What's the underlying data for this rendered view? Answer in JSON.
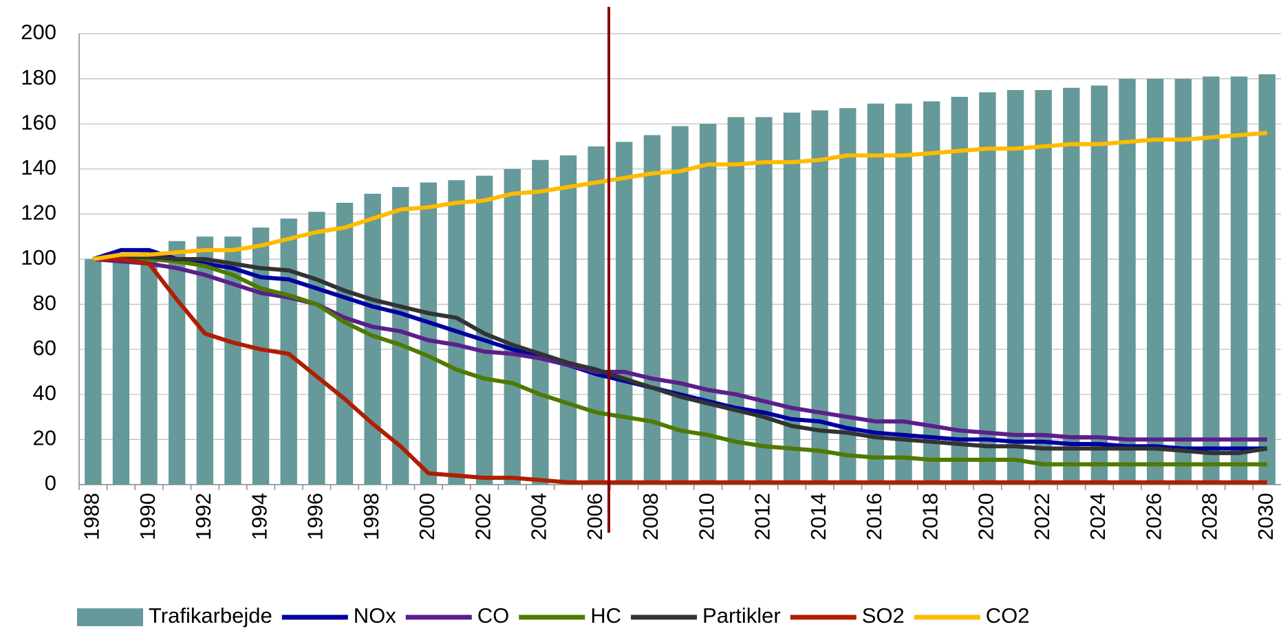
{
  "chart_data": {
    "type": "bar-line",
    "categories": [
      "1988",
      null,
      "1990",
      null,
      "1992",
      null,
      "1994",
      null,
      "1996",
      null,
      "1998",
      null,
      "2000",
      null,
      "2002",
      null,
      "2004",
      null,
      "2006",
      null,
      "2008",
      null,
      "2010",
      null,
      "2012",
      null,
      "2014",
      null,
      "2016",
      null,
      "2018",
      null,
      "2020",
      null,
      "2022",
      null,
      "2024",
      null,
      "2026",
      null,
      "2028",
      null,
      "2030"
    ],
    "series": [
      {
        "name": "Trafikarbejde",
        "kind": "bar",
        "color": "#669999",
        "values": [
          100,
          101,
          103,
          108,
          110,
          110,
          114,
          118,
          121,
          125,
          129,
          132,
          134,
          135,
          137,
          140,
          144,
          146,
          150,
          152,
          155,
          159,
          160,
          163,
          163,
          165,
          166,
          167,
          169,
          169,
          170,
          172,
          174,
          175,
          175,
          176,
          177,
          180,
          180,
          180,
          181,
          181,
          182
        ]
      },
      {
        "name": "NOx",
        "kind": "line",
        "color": "#0000a0",
        "values": [
          100,
          104,
          104,
          100,
          98,
          96,
          92,
          91,
          87,
          83,
          79,
          76,
          72,
          68,
          64,
          60,
          57,
          53,
          49,
          46,
          43,
          40,
          37,
          34,
          32,
          29,
          28,
          25,
          23,
          22,
          21,
          20,
          20,
          19,
          19,
          18,
          18,
          17,
          17,
          16,
          16,
          16,
          16
        ]
      },
      {
        "name": "CO",
        "kind": "line",
        "color": "#5b1f8c",
        "values": [
          100,
          99,
          98,
          96,
          93,
          89,
          85,
          83,
          80,
          74,
          70,
          68,
          64,
          62,
          59,
          58,
          56,
          53,
          50,
          50,
          47,
          45,
          42,
          40,
          37,
          34,
          32,
          30,
          28,
          28,
          26,
          24,
          23,
          22,
          22,
          21,
          21,
          20,
          20,
          20,
          20,
          20,
          20
        ]
      },
      {
        "name": "HC",
        "kind": "line",
        "color": "#4f7a00",
        "values": [
          100,
          100,
          100,
          99,
          97,
          93,
          87,
          84,
          80,
          72,
          66,
          62,
          57,
          51,
          47,
          45,
          40,
          36,
          32,
          30,
          28,
          24,
          22,
          19,
          17,
          16,
          15,
          13,
          12,
          12,
          11,
          11,
          11,
          11,
          9,
          9,
          9,
          9,
          9,
          9,
          9,
          9,
          9
        ]
      },
      {
        "name": "Partikler",
        "kind": "line",
        "color": "#333333",
        "values": [
          100,
          101,
          101,
          100,
          100,
          98,
          96,
          95,
          91,
          86,
          82,
          79,
          76,
          74,
          67,
          62,
          58,
          54,
          51,
          47,
          43,
          39,
          36,
          33,
          30,
          26,
          24,
          23,
          21,
          20,
          19,
          18,
          17,
          17,
          16,
          16,
          16,
          16,
          16,
          15,
          14,
          14,
          16
        ]
      },
      {
        "name": "SO2",
        "kind": "line",
        "color": "#b01e00",
        "values": [
          100,
          100,
          98,
          82,
          67,
          63,
          60,
          58,
          48,
          38,
          27,
          17,
          5,
          4,
          3,
          3,
          2,
          1,
          1,
          1,
          1,
          1,
          1,
          1,
          1,
          1,
          1,
          1,
          1,
          1,
          1,
          1,
          1,
          1,
          1,
          1,
          1,
          1,
          1,
          1,
          1,
          1,
          1
        ]
      },
      {
        "name": "CO2",
        "kind": "line",
        "color": "#ffbb00",
        "values": [
          100,
          102,
          102,
          103,
          104,
          104,
          106,
          109,
          112,
          114,
          118,
          122,
          123,
          125,
          126,
          129,
          130,
          132,
          134,
          136,
          138,
          139,
          142,
          142,
          143,
          143,
          144,
          146,
          146,
          146,
          147,
          148,
          149,
          149,
          150,
          151,
          151,
          152,
          153,
          153,
          154,
          155,
          156
        ]
      }
    ],
    "ylim": [
      0,
      200
    ],
    "yticks": [
      0,
      20,
      40,
      60,
      80,
      100,
      120,
      140,
      160,
      180,
      200
    ],
    "grid": true,
    "legend": "bottom"
  }
}
